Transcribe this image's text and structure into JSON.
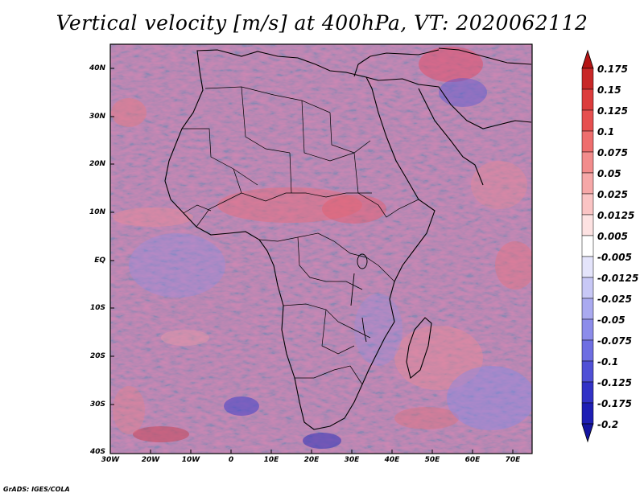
{
  "title": "Vertical velocity [m/s] at 400hPa, VT: 2020062112",
  "credit": "GrADS: IGES/COLA",
  "axes": {
    "lon_ticks": [
      "30W",
      "20W",
      "10W",
      "0",
      "10E",
      "20E",
      "30E",
      "40E",
      "50E",
      "60E",
      "70E"
    ],
    "lat_ticks": [
      "40N",
      "30N",
      "20N",
      "10N",
      "EQ",
      "10S",
      "20S",
      "30S",
      "40S"
    ],
    "lon_range": [
      -30,
      75
    ],
    "lat_range": [
      -40,
      45
    ]
  },
  "colorbar": {
    "labels": [
      "0.175",
      "0.15",
      "0.125",
      "0.1",
      "0.075",
      "0.05",
      "0.025",
      "0.0125",
      "0.005",
      "-0.005",
      "-0.0125",
      "-0.025",
      "-0.05",
      "-0.075",
      "-0.1",
      "-0.125",
      "-0.175",
      "-0.2"
    ],
    "colors": [
      "#b41414",
      "#c82828",
      "#dc3c3c",
      "#e65050",
      "#ee6e6e",
      "#f28c8c",
      "#f6a8a8",
      "#fac4c4",
      "#fde2e2",
      "#ffffff",
      "#e4e4fb",
      "#c8c8f6",
      "#aaaaf0",
      "#8c8cea",
      "#6e6ee2",
      "#5050d6",
      "#3232c6",
      "#1e1eb4",
      "#1414a0"
    ]
  },
  "colors": {
    "map_base": "#b9b4f0",
    "land_outline": "#000000"
  }
}
